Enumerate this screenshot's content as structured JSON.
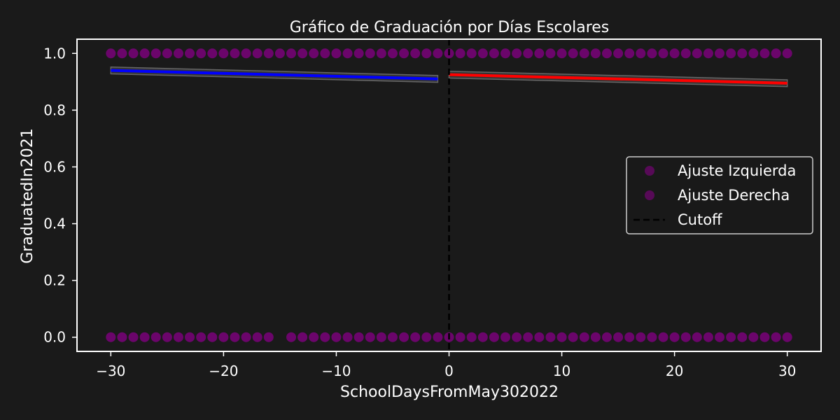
{
  "chart_data": {
    "type": "scatter",
    "title": "Gráfico de Graduación por Días Escolares",
    "xlabel": "SchoolDaysFromMay302022",
    "ylabel": "GraduatedIn2021",
    "xlim": [
      -33,
      33
    ],
    "ylim": [
      -0.05,
      1.05
    ],
    "grid": false,
    "legend_position": "center-right",
    "x_ticks": [
      -30,
      -20,
      -10,
      0,
      10,
      20,
      30
    ],
    "x_tick_labels": [
      "−30",
      "−20",
      "−10",
      "0",
      "10",
      "20",
      "30"
    ],
    "y_ticks": [
      0.0,
      0.2,
      0.4,
      0.6,
      0.8,
      1.0
    ],
    "y_tick_labels": [
      "0.0",
      "0.2",
      "0.4",
      "0.6",
      "0.8",
      "1.0"
    ],
    "cutoff": 0,
    "series": [
      {
        "name": "Ajuste Izquierda",
        "color": "#800080",
        "points": {
          "y1_x": [
            -30,
            -29,
            -28,
            -27,
            -26,
            -25,
            -24,
            -23,
            -22,
            -21,
            -20,
            -19,
            -18,
            -17,
            -16,
            -15,
            -14,
            -13,
            -12,
            -11,
            -10,
            -9,
            -8,
            -7,
            -6,
            -5,
            -4,
            -3,
            -2,
            -1
          ],
          "y0_x": [
            -30,
            -29,
            -28,
            -27,
            -26,
            -25,
            -24,
            -23,
            -22,
            -21,
            -20,
            -19,
            -18,
            -17,
            -16,
            -14,
            -13,
            -12,
            -11,
            -10,
            -9,
            -8,
            -7,
            -6,
            -5,
            -4,
            -3,
            -2,
            -1
          ]
        },
        "fit": {
          "color": "#0000ff",
          "x": [
            -30,
            -1
          ],
          "y": [
            0.94,
            0.91
          ],
          "ci_half_width": 0.012
        }
      },
      {
        "name": "Ajuste Derecha",
        "color": "#800080",
        "points": {
          "y1_x": [
            0,
            1,
            2,
            3,
            4,
            5,
            6,
            7,
            8,
            9,
            10,
            11,
            12,
            13,
            14,
            15,
            16,
            17,
            18,
            19,
            20,
            21,
            22,
            23,
            24,
            25,
            26,
            27,
            28,
            29,
            30
          ],
          "y0_x": [
            0,
            1,
            2,
            3,
            4,
            5,
            6,
            7,
            8,
            9,
            10,
            11,
            12,
            13,
            14,
            15,
            16,
            17,
            18,
            19,
            20,
            21,
            22,
            23,
            24,
            25,
            26,
            27,
            28,
            29,
            30
          ]
        },
        "fit": {
          "color": "#ff0000",
          "x": [
            0,
            30
          ],
          "y": [
            0.925,
            0.895
          ],
          "ci_half_width": 0.012
        }
      }
    ],
    "legend": [
      {
        "label": "Ajuste Izquierda",
        "kind": "marker",
        "color": "#800080"
      },
      {
        "label": "Ajuste Derecha",
        "kind": "marker",
        "color": "#800080"
      },
      {
        "label": "Cutoff",
        "kind": "dashed-line",
        "color": "#000000"
      }
    ]
  }
}
